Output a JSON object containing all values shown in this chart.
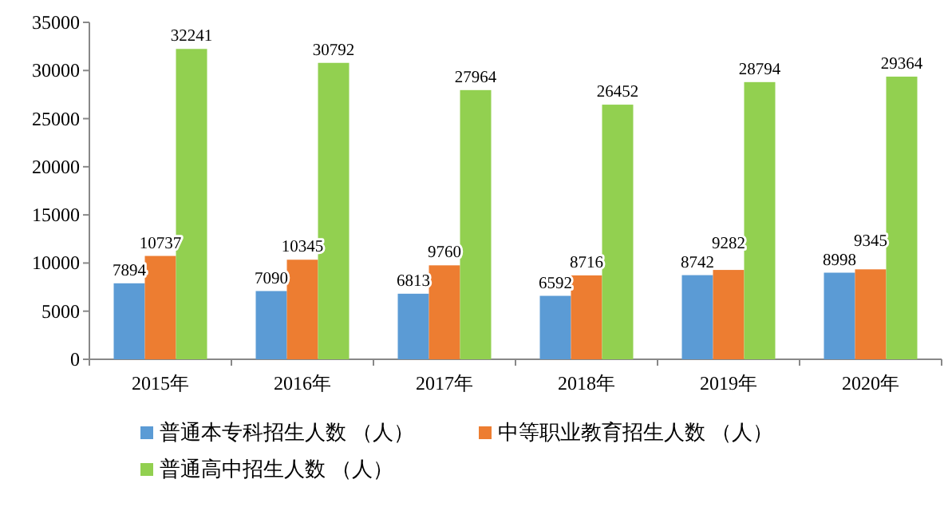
{
  "chart_data": {
    "type": "bar",
    "categories": [
      "2015年",
      "2016年",
      "2017年",
      "2018年",
      "2019年",
      "2020年"
    ],
    "series": [
      {
        "name": "普通本专科招生人数 （人）",
        "color": "#5b9bd5",
        "values": [
          7894,
          7090,
          6813,
          6592,
          8742,
          8998
        ]
      },
      {
        "name": "中等职业教育招生人数 （人）",
        "color": "#ed7d31",
        "values": [
          10737,
          10345,
          9760,
          8716,
          9282,
          9345
        ]
      },
      {
        "name": "普通高中招生人数 （人）",
        "color": "#92d050",
        "values": [
          32241,
          30792,
          27964,
          26452,
          28794,
          29364
        ]
      }
    ],
    "ylim": [
      0,
      35000
    ],
    "yticks": [
      0,
      5000,
      10000,
      15000,
      20000,
      25000,
      30000,
      35000
    ],
    "data_labels": true,
    "legend": "bottom",
    "grid": false
  }
}
